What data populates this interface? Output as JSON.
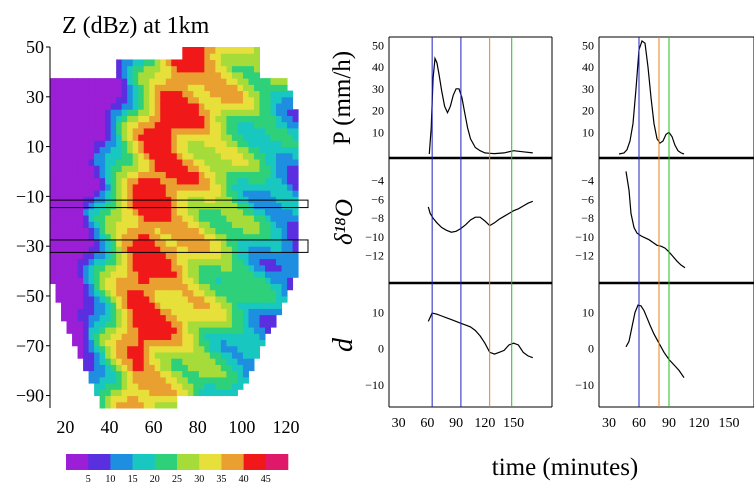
{
  "chart_data": [
    {
      "type": "heatmap",
      "title": "Z (dBz) at 1km",
      "x_ticks": [
        "20",
        "40",
        "60",
        "80",
        "100",
        "120"
      ],
      "y_ticks": [
        "50",
        "30",
        "10",
        "−10",
        "−30",
        "−50",
        "−70",
        "−90"
      ],
      "xlim": [
        13,
        130
      ],
      "ylim": [
        -95,
        50
      ],
      "colorbar": {
        "labels": [
          "5",
          "10",
          "15",
          "20",
          "25",
          "30",
          "35",
          "40",
          "45"
        ],
        "colors": [
          "#9a1fd6",
          "#5a2fe0",
          "#1e8fe0",
          "#18c8c0",
          "#2ed07a",
          "#a6dc3a",
          "#e8e03a",
          "#eaa030",
          "#f01818",
          "#e0186a"
        ]
      },
      "bands_y": [
        [
          -14.5,
          -11.5
        ],
        [
          -32.5,
          -27.5
        ]
      ]
    },
    {
      "type": "line",
      "panel": "left",
      "xlabel": "time (minutes)",
      "x_ticks": [
        "30",
        "60",
        "90",
        "120",
        "150"
      ],
      "xlim": [
        20,
        190
      ],
      "vlines": [
        {
          "x": 65,
          "color": "#2020c0"
        },
        {
          "x": 95,
          "color": "#2020c0"
        },
        {
          "x": 125,
          "color": "#e8801a"
        },
        {
          "x": 148,
          "color": "#20c020"
        }
      ],
      "rows": [
        {
          "ylabel": "P (mm/h)",
          "ylim": [
            0,
            52
          ],
          "y_ticks": [
            "10",
            "20",
            "30",
            "40",
            "50"
          ],
          "series": [
            {
              "x": [
                62,
                64,
                66,
                68,
                70,
                72,
                75,
                78,
                81,
                84,
                87,
                90,
                93,
                96,
                99,
                102,
                105,
                110,
                115,
                120,
                125,
                130,
                140,
                150,
                160,
                170
              ],
              "y": [
                0,
                12,
                35,
                44,
                42,
                37,
                29,
                22,
                19,
                22,
                27,
                30,
                30,
                26,
                19,
                12,
                7,
                3,
                1.5,
                0.5,
                0.3,
                0.2,
                0.5,
                1.5,
                1,
                0.5
              ]
            }
          ]
        },
        {
          "ylabel": "δ¹⁸O",
          "ylim": [
            -14.5,
            -2
          ],
          "y_ticks": [
            "−4",
            "−6",
            "−8",
            "−10",
            "−12"
          ],
          "series": [
            {
              "x": [
                61,
                63,
                66,
                70,
                75,
                80,
                85,
                90,
                95,
                100,
                105,
                110,
                115,
                120,
                125,
                130,
                135,
                140,
                145,
                150,
                155,
                160,
                165,
                170
              ],
              "y": [
                -6.8,
                -7.5,
                -8.0,
                -8.5,
                -9.0,
                -9.3,
                -9.5,
                -9.4,
                -9.1,
                -8.7,
                -8.2,
                -7.9,
                -7.9,
                -8.3,
                -8.8,
                -8.5,
                -8.1,
                -7.8,
                -7.5,
                -7.2,
                -7.0,
                -6.7,
                -6.4,
                -6.2
              ]
            }
          ]
        },
        {
          "ylabel": "d",
          "ylim": [
            -15,
            17
          ],
          "y_ticks": [
            "10",
            "0",
            "−10"
          ],
          "series": [
            {
              "x": [
                61,
                65,
                70,
                75,
                80,
                85,
                90,
                95,
                100,
                105,
                110,
                115,
                120,
                125,
                130,
                135,
                140,
                145,
                150,
                155,
                160,
                165,
                170
              ],
              "y": [
                7.5,
                9.8,
                9.5,
                9.0,
                8.5,
                8.0,
                7.5,
                7.0,
                6.5,
                6.0,
                5.0,
                3.5,
                1.5,
                -1.0,
                -1.5,
                -1.0,
                -0.5,
                1.0,
                1.5,
                1.0,
                -1.0,
                -2.0,
                -2.5
              ]
            }
          ]
        }
      ]
    },
    {
      "type": "line",
      "panel": "right",
      "xlabel": "time (minutes)",
      "x_ticks": [
        "30",
        "60",
        "90",
        "120",
        "150"
      ],
      "xlim": [
        20,
        175
      ],
      "vlines": [
        {
          "x": 60,
          "color": "#2020c0"
        },
        {
          "x": 80,
          "color": "#e8801a"
        },
        {
          "x": 90,
          "color": "#20c020"
        }
      ],
      "rows": [
        {
          "ylabel": "P (mm/h)",
          "ylim": [
            0,
            52
          ],
          "y_ticks": [
            "10",
            "20",
            "30",
            "40",
            "50"
          ],
          "series": [
            {
              "x": [
                40,
                45,
                48,
                51,
                54,
                57,
                60,
                63,
                66,
                69,
                72,
                75,
                78,
                81,
                84,
                87,
                90,
                93,
                96,
                99,
                102,
                105
              ],
              "y": [
                0,
                0.5,
                2,
                6,
                14,
                30,
                48,
                52,
                51,
                40,
                26,
                14,
                7,
                5,
                6,
                9,
                10,
                8,
                4,
                1.5,
                0.5,
                0
              ]
            }
          ]
        },
        {
          "ylabel": "",
          "ylim": [
            -14.5,
            -2
          ],
          "y_ticks": [
            "−4",
            "−6",
            "−8",
            "−10",
            "−12"
          ],
          "series": [
            {
              "x": [
                47,
                50,
                52,
                55,
                58,
                62,
                66,
                70,
                74,
                78,
                82,
                86,
                90,
                94,
                98,
                102,
                106
              ],
              "y": [
                -3.0,
                -5.0,
                -7.5,
                -9.0,
                -9.6,
                -9.9,
                -10.1,
                -10.3,
                -10.6,
                -10.9,
                -11.0,
                -11.2,
                -11.6,
                -12.1,
                -12.6,
                -13.0,
                -13.3
              ]
            }
          ]
        },
        {
          "ylabel": "",
          "ylim": [
            -15,
            17
          ],
          "y_ticks": [
            "10",
            "0",
            "−10"
          ],
          "series": [
            {
              "x": [
                47,
                50,
                53,
                56,
                59,
                62,
                65,
                68,
                71,
                75,
                80,
                85,
                90,
                95,
                100,
                105
              ],
              "y": [
                0.5,
                2,
                6,
                10,
                12,
                11.8,
                10.5,
                8.5,
                6.5,
                4,
                1.5,
                -1,
                -3,
                -4.5,
                -6,
                -8
              ]
            }
          ]
        }
      ]
    }
  ]
}
